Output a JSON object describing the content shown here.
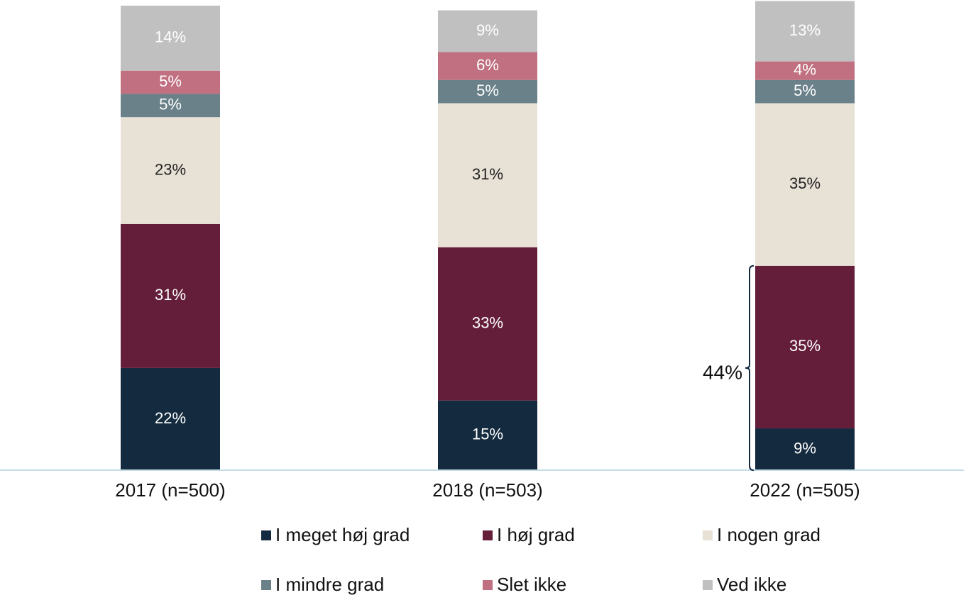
{
  "chart_data": {
    "type": "stacked_bar",
    "categories": [
      "2017 (n=500)",
      "2018 (n=503)",
      "2022 (n=505)"
    ],
    "ylim": [
      0,
      100
    ],
    "series": [
      {
        "name": "I meget høj grad",
        "color": "#142a3e",
        "values": [
          22,
          15,
          9
        ],
        "value_labels": [
          "22%",
          "15%",
          "9%"
        ]
      },
      {
        "name": "I høj grad",
        "color": "#641e3a",
        "values": [
          31,
          33,
          35
        ],
        "value_labels": [
          "31%",
          "33%",
          "35%"
        ]
      },
      {
        "name": "I nogen grad",
        "color": "#e8e1d6",
        "values": [
          23,
          31,
          35
        ],
        "value_labels": [
          "23%",
          "31%",
          "35%"
        ]
      },
      {
        "name": "I mindre grad",
        "color": "#6a818a",
        "values": [
          5,
          5,
          5
        ],
        "value_labels": [
          "5%",
          "5%",
          "5%"
        ]
      },
      {
        "name": "Slet ikke",
        "color": "#c07080",
        "values": [
          5,
          6,
          4
        ],
        "value_labels": [
          "5%",
          "6%",
          "4%"
        ]
      },
      {
        "name": "Ved ikke",
        "color": "#c0c0c0",
        "values": [
          14,
          9,
          13
        ],
        "value_labels": [
          "14%",
          "9%",
          "13%"
        ]
      }
    ],
    "annotations": [
      {
        "label": "44%"
      }
    ]
  }
}
